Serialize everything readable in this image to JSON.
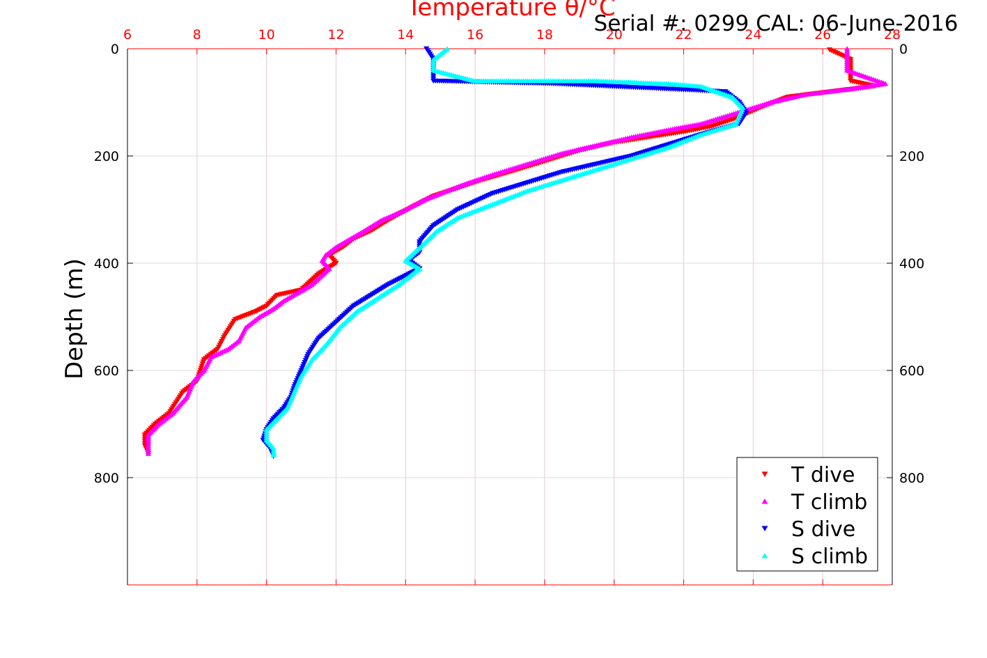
{
  "figure": {
    "title": "Temperature θ/°C",
    "subtitle": "Serial #: 0299 CAL: 06-June-2016"
  },
  "colors": {
    "t_dive": "#ff0000",
    "t_climb": "#ff00ff",
    "s_dive": "#0000ff",
    "s_climb": "#00ffff",
    "axis_top": "#ff0000",
    "grid": "#e6c8d6"
  },
  "chart_data": {
    "type": "scatter",
    "title": "Temperature θ/°C",
    "xlabel": "",
    "ylabel": "Depth (m)",
    "xlim": [
      6,
      28
    ],
    "ylim": [
      0,
      1000
    ],
    "y_reversed": true,
    "x_ticks": [
      "6",
      "8",
      "10",
      "12",
      "14",
      "16",
      "18",
      "20",
      "22",
      "24",
      "26",
      "28"
    ],
    "y_ticks": [
      "0",
      "200",
      "400",
      "600",
      "800"
    ],
    "grid": true,
    "legend_position": "bottom-right",
    "series": [
      {
        "name": "T dive",
        "marker": "triangle-down",
        "x": [
          26.2,
          26.8,
          26.8,
          26.8,
          27.5,
          25.0,
          24.2,
          23.5,
          22.8,
          22.0,
          21.0,
          20.0,
          19.0,
          18.0,
          17.0,
          16.2,
          15.5,
          14.8,
          14.2,
          13.5,
          13.0,
          12.5,
          12.2,
          11.8,
          12.0,
          11.5,
          11.0,
          10.3,
          10.0,
          9.7,
          9.1,
          8.8,
          8.6,
          8.2,
          8.1,
          8.0,
          7.6,
          7.4,
          7.2,
          6.8,
          6.5,
          6.5,
          6.6
        ],
        "y": [
          2,
          20,
          40,
          60,
          70,
          90,
          110,
          130,
          145,
          155,
          165,
          175,
          190,
          210,
          230,
          245,
          260,
          275,
          295,
          320,
          340,
          355,
          370,
          385,
          400,
          420,
          450,
          460,
          480,
          490,
          505,
          535,
          560,
          580,
          600,
          620,
          640,
          660,
          680,
          700,
          720,
          740,
          755
        ]
      },
      {
        "name": "T climb",
        "marker": "triangle-up",
        "x": [
          26.7,
          26.7,
          26.7,
          27.8,
          26.8,
          25.5,
          24.5,
          23.5,
          22.5,
          21.5,
          20.5,
          19.5,
          18.5,
          17.5,
          16.5,
          15.8,
          15.2,
          14.6,
          14.0,
          13.3,
          12.8,
          12.4,
          12.0,
          11.7,
          11.6,
          11.8,
          11.3,
          10.5,
          10.2,
          9.8,
          9.4,
          9.2,
          8.9,
          8.4,
          8.2,
          7.9,
          7.7,
          7.3,
          6.9,
          6.6,
          6.6,
          6.6
        ],
        "y": [
          0,
          20,
          40,
          65,
          75,
          85,
          100,
          120,
          140,
          152,
          165,
          180,
          195,
          215,
          235,
          250,
          265,
          280,
          300,
          320,
          340,
          355,
          370,
          385,
          395,
          410,
          440,
          470,
          485,
          500,
          520,
          545,
          560,
          575,
          600,
          620,
          650,
          680,
          700,
          720,
          740,
          755
        ]
      },
      {
        "name": "S dive",
        "marker": "triangle-down",
        "x": [
          14.6,
          14.8,
          14.8,
          14.8,
          18.2,
          23.2,
          23.6,
          23.8,
          23.6,
          22.5,
          21.5,
          20.5,
          19.5,
          18.5,
          17.5,
          16.5,
          15.5,
          14.8,
          14.4,
          14.4,
          14.1,
          14.4,
          13.5,
          13.0,
          12.5,
          12.0,
          11.5,
          11.2,
          11.0,
          10.8,
          10.7,
          10.5,
          10.2,
          10.0,
          9.9,
          10.1,
          10.2
        ],
        "y": [
          0,
          20,
          40,
          60,
          65,
          80,
          100,
          120,
          140,
          160,
          180,
          200,
          215,
          230,
          250,
          270,
          300,
          330,
          360,
          380,
          395,
          410,
          440,
          460,
          480,
          510,
          540,
          570,
          600,
          630,
          650,
          670,
          690,
          710,
          730,
          745,
          760
        ]
      },
      {
        "name": "S climb",
        "marker": "triangle-up",
        "x": [
          15.2,
          14.8,
          14.8,
          16.0,
          19.5,
          21.5,
          22.5,
          23.4,
          23.7,
          23.5,
          22.5,
          21.5,
          20.5,
          19.5,
          18.5,
          17.5,
          16.5,
          15.5,
          14.9,
          14.5,
          14.0,
          14.4,
          13.8,
          13.2,
          12.6,
          12.1,
          11.8,
          11.6,
          11.3,
          11.0,
          10.8,
          10.6,
          10.3,
          10.0,
          10.0,
          10.2,
          10.2
        ],
        "y": [
          0,
          20,
          40,
          60,
          60,
          65,
          70,
          90,
          110,
          140,
          160,
          185,
          205,
          225,
          245,
          265,
          290,
          315,
          340,
          365,
          395,
          410,
          440,
          465,
          490,
          520,
          545,
          560,
          580,
          610,
          640,
          670,
          690,
          710,
          730,
          745,
          758
        ]
      }
    ]
  }
}
